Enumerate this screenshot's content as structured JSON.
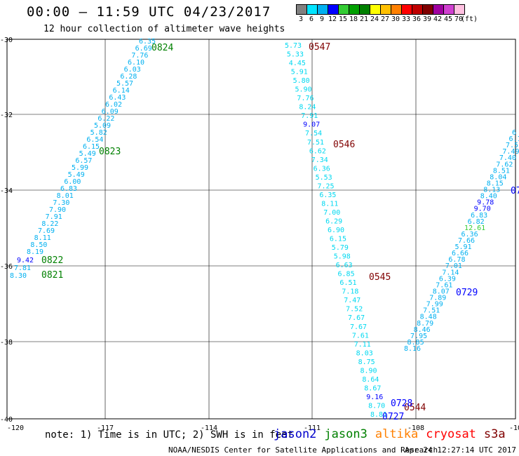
{
  "header": {
    "title": "00:00 – 11:59 UTC 04/23/2017",
    "subtitle": "12 hour collection of altimeter wave heights"
  },
  "legend": {
    "unit": "(ft)",
    "levels": [
      {
        "label": "3",
        "color": "#808080"
      },
      {
        "label": "6",
        "color": "#00e5ff"
      },
      {
        "label": "9",
        "color": "#00b0f0"
      },
      {
        "label": "12",
        "color": "#0000ff"
      },
      {
        "label": "15",
        "color": "#33cc33"
      },
      {
        "label": "18",
        "color": "#00a000"
      },
      {
        "label": "21",
        "color": "#008000"
      },
      {
        "label": "24",
        "color": "#ffff00"
      },
      {
        "label": "27",
        "color": "#ffc000"
      },
      {
        "label": "30",
        "color": "#ff8000"
      },
      {
        "label": "33",
        "color": "#ff0000"
      },
      {
        "label": "36",
        "color": "#c00000"
      },
      {
        "label": "39",
        "color": "#800000"
      },
      {
        "label": "42",
        "color": "#a000a0"
      },
      {
        "label": "45",
        "color": "#d040d0"
      },
      {
        "label": "70",
        "color": "#ffc0e0"
      }
    ]
  },
  "map": {
    "lon_ticks": [
      "-120",
      "-117",
      "-114",
      "-111",
      "-108",
      "-10"
    ],
    "lat_ticks": [
      "-30",
      "-32",
      "-34",
      "-36",
      "-38",
      "-40"
    ],
    "tracks": [
      {
        "satellite": "jason3",
        "color": "#00b0f0",
        "values": [
          "6.35",
          "6.69",
          "7.76",
          "6.10",
          "6.03",
          "6.28",
          "5.57",
          "6.14",
          "6.43",
          "6.02",
          "6.09",
          "6.22",
          "5.09",
          "5.82",
          "6.54",
          "6.15",
          "5.49",
          "6.57",
          "5.99",
          "5.49",
          "6.00",
          "6.83",
          "8.01",
          "7.30",
          "7.90",
          "7.91",
          "8.22",
          "7.69",
          "8.11",
          "8.50",
          "8.19"
        ],
        "extra": [
          {
            "text": "9.42",
            "color": "#0000ff"
          },
          {
            "text": "7.81",
            "color": "#00b0f0"
          },
          {
            "text": "8.30",
            "color": "#00b0f0"
          }
        ],
        "times": [
          {
            "text": "0824",
            "color": "#008000"
          },
          {
            "text": "0823",
            "color": "#008000"
          },
          {
            "text": "0822",
            "color": "#008000"
          },
          {
            "text": "0821",
            "color": "#008000"
          }
        ]
      },
      {
        "satellite": "s3a",
        "color": "#00d8f0",
        "values": [
          "5.73",
          "5.33",
          "4.45",
          "5.91",
          "5.80",
          "5.90",
          "7.76",
          "8.24",
          "7.91",
          "9.07",
          "7.54",
          "7.51",
          "6.62",
          "7.34",
          "6.36",
          "5.53",
          "7.25",
          "6.35",
          "8.11",
          "7.00",
          "6.29",
          "6.90",
          "6.15",
          "5.79",
          "5.98",
          "6.63",
          "6.85",
          "6.51",
          "7.18",
          "7.47",
          "7.52",
          "7.67",
          "7.67",
          "7.61",
          "7.11",
          "8.03",
          "8.75",
          "8.90",
          "8.64",
          "8.67",
          "9.16",
          "8.70",
          "8.81"
        ],
        "times": [
          {
            "text": "0547",
            "color": "#800000"
          },
          {
            "text": "0546",
            "color": "#800000"
          },
          {
            "text": "0545",
            "color": "#800000"
          },
          {
            "text": "0544",
            "color": "#800000"
          }
        ]
      },
      {
        "satellite": "jason2",
        "color": "#00b0f0",
        "values": [
          "8.16",
          "8.85",
          "7.95",
          "8.46",
          "8.79",
          "8.48",
          "7.51",
          "7.99",
          "7.89",
          "8.07",
          "7.61",
          "6.39",
          "7.14",
          "7.01",
          "6.78",
          "6.66",
          "5.91",
          "7.66",
          "6.36",
          "12.61",
          "6.82",
          "6.83",
          "9.70",
          "9.78",
          "8.40",
          "8.13",
          "8.15",
          "8.04",
          "8.51",
          "7.62",
          "7.40",
          "7.49",
          "7.51",
          "6.1",
          "6"
        ],
        "times": [
          {
            "text": "0729",
            "color": "#0000ff"
          },
          {
            "text": "0728",
            "color": "#0000ff"
          },
          {
            "text": "0727",
            "color": "#0000ff"
          },
          {
            "text": "07",
            "color": "#0000ff"
          }
        ]
      }
    ]
  },
  "note": "note: 1) Time is in UTC; 2) SWH is in feet",
  "satellites": [
    {
      "name": "jason2",
      "color": "#0000cc"
    },
    {
      "name": "jason3",
      "color": "#008000"
    },
    {
      "name": "altika",
      "color": "#ff8000"
    },
    {
      "name": "cryosat",
      "color": "#ff0000"
    },
    {
      "name": "s3a",
      "color": "#800000"
    }
  ],
  "footer": {
    "credit": "NOAA/NESDIS Center for Satellite Applications and Research",
    "timestamp": "Apr 24 12:27:14 UTC 2017"
  }
}
